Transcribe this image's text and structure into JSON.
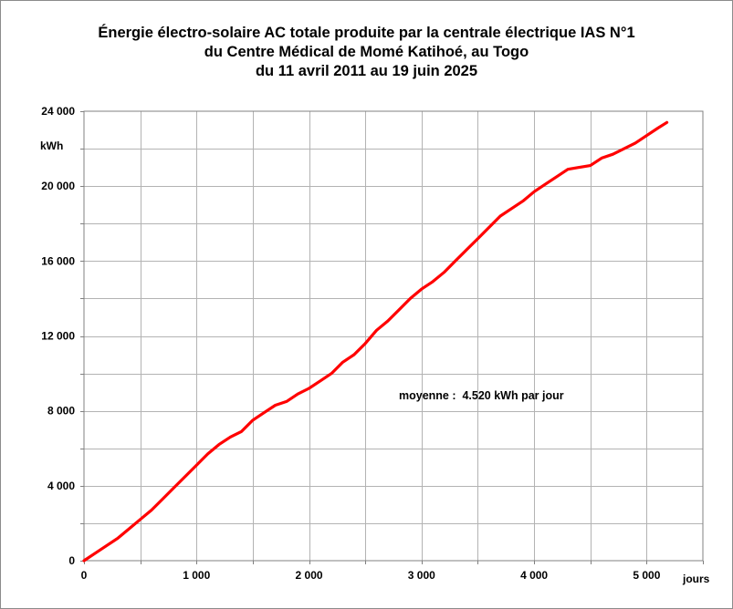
{
  "chart_data": {
    "type": "line",
    "title_lines": [
      "Énergie électro-solaire AC totale produite par la centrale électrique IAS N°1",
      "du Centre Médical de Momé Katihoé, au Togo",
      "du 11 avril 2011 au 19 juin 2025"
    ],
    "xlabel": "jours",
    "ylabel": "kWh",
    "xlim": [
      0,
      5500
    ],
    "ylim": [
      0,
      24000
    ],
    "x_major_ticks": [
      0,
      1000,
      2000,
      3000,
      4000,
      5000
    ],
    "x_tick_labels": [
      "0",
      "1 000",
      "2 000",
      "3 000",
      "4 000",
      "5 000"
    ],
    "y_major_ticks": [
      0,
      4000,
      8000,
      12000,
      16000,
      20000,
      24000
    ],
    "y_tick_labels": [
      "0",
      "4 000",
      "8 000",
      "12 000",
      "16 000",
      "20 000",
      "24 000"
    ],
    "x_grid_step": 500,
    "y_grid_step": 2000,
    "grid": true,
    "annotation": "moyenne :  4.520 kWh par jour",
    "series_color": "#ff0000",
    "series": [
      {
        "x": [
          0,
          100,
          200,
          300,
          400,
          500,
          600,
          700,
          800,
          900,
          1000,
          1100,
          1200,
          1300,
          1400,
          1500,
          1600,
          1700,
          1800,
          1900,
          2000,
          2100,
          2200,
          2300,
          2400,
          2500,
          2600,
          2700,
          2800,
          2900,
          3000,
          3100,
          3200,
          3300,
          3400,
          3500,
          3600,
          3700,
          3800,
          3900,
          4000,
          4100,
          4200,
          4300,
          4400,
          4500,
          4600,
          4700,
          4800,
          4900,
          5000,
          5100,
          5180
        ],
        "y": [
          0,
          400,
          800,
          1200,
          1700,
          2200,
          2700,
          3300,
          3900,
          4500,
          5100,
          5700,
          6200,
          6600,
          6900,
          7500,
          7900,
          8300,
          8500,
          8900,
          9200,
          9600,
          10000,
          10600,
          11000,
          11600,
          12300,
          12800,
          13400,
          14000,
          14500,
          14900,
          15400,
          16000,
          16600,
          17200,
          17800,
          18400,
          18800,
          19200,
          19700,
          20100,
          20500,
          20900,
          21000,
          21100,
          21500,
          21700,
          22000,
          22300,
          22700,
          23100,
          23400
        ]
      }
    ]
  }
}
